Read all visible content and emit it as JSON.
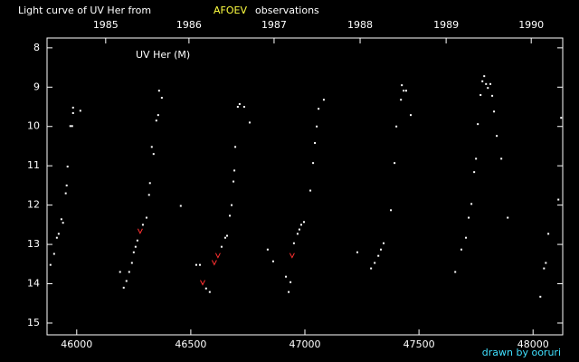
{
  "chart_data": {
    "type": "scatter",
    "title_prefix": "Light curve of UV Her from",
    "title_highlight": "AFOEV",
    "title_suffix": "observations",
    "label": "UV Her (M)",
    "credit": "drawn by ooruri",
    "xlim": [
      45870,
      48130
    ],
    "xticks": [
      46000,
      46500,
      47000,
      47500,
      48000
    ],
    "x2ticks": [
      {
        "value": 46127,
        "label": "1985"
      },
      {
        "value": 46492,
        "label": "1986"
      },
      {
        "value": 46865,
        "label": "1987"
      },
      {
        "value": 47242,
        "label": "1988"
      },
      {
        "value": 47619,
        "label": "1989"
      },
      {
        "value": 47992,
        "label": "1990"
      }
    ],
    "ylim": [
      7.75,
      15.3
    ],
    "y_inverted": true,
    "yticks": [
      8,
      9,
      10,
      11,
      12,
      13,
      14,
      15
    ],
    "background": "#000000",
    "axis_color": "#ffffff",
    "highlight_color": "#ffff40",
    "credit_color": "#40e0ff",
    "series": [
      {
        "color": "#ffffff",
        "marker": "dot",
        "x": [
          45885,
          45901,
          45913,
          45921,
          45933,
          45940,
          45952,
          45956,
          45960,
          45972,
          45980,
          45984,
          45984,
          46016,
          46190,
          46206,
          46218,
          46230,
          46242,
          46250,
          46258,
          46266,
          46290,
          46306,
          46317,
          46321,
          46329,
          46337,
          46349,
          46357,
          46361,
          46373,
          46456,
          46524,
          46540,
          46567,
          46583,
          46635,
          46651,
          46659,
          46671,
          46679,
          46687,
          46691,
          46695,
          46706,
          46714,
          46734,
          46758,
          46837,
          46861,
          46917,
          46929,
          46937,
          46952,
          46968,
          46976,
          46984,
          46996,
          47024,
          47036,
          47044,
          47052,
          47060,
          47083,
          47230,
          47290,
          47306,
          47322,
          47333,
          47345,
          47377,
          47393,
          47401,
          47421,
          47425,
          47433,
          47444,
          47464,
          47659,
          47686,
          47706,
          47718,
          47730,
          47742,
          47750,
          47758,
          47770,
          47778,
          47786,
          47794,
          47802,
          47813,
          47821,
          47829,
          47841,
          47861,
          47889,
          48032,
          48048,
          48056,
          48067,
          48111,
          48123
        ],
        "values": [
          13.52,
          13.24,
          12.83,
          12.73,
          12.36,
          12.45,
          11.7,
          11.5,
          11.02,
          9.99,
          9.99,
          9.66,
          9.52,
          9.6,
          13.7,
          14.1,
          13.93,
          13.7,
          13.47,
          13.2,
          13.06,
          12.9,
          12.5,
          12.32,
          11.74,
          11.44,
          10.52,
          10.7,
          9.85,
          9.71,
          9.09,
          9.27,
          12.02,
          13.52,
          13.52,
          14.12,
          14.21,
          13.06,
          12.83,
          12.78,
          12.27,
          12.0,
          11.4,
          11.12,
          10.52,
          9.5,
          9.43,
          9.5,
          9.9,
          13.13,
          13.43,
          13.82,
          14.21,
          13.96,
          12.97,
          12.73,
          12.62,
          12.5,
          12.43,
          11.63,
          10.93,
          10.42,
          10.0,
          9.55,
          9.32,
          13.2,
          13.61,
          13.47,
          13.29,
          13.13,
          12.97,
          12.13,
          10.93,
          10.0,
          9.32,
          8.95,
          9.09,
          9.09,
          9.71,
          13.7,
          13.13,
          12.83,
          12.32,
          11.97,
          11.16,
          10.82,
          9.94,
          9.2,
          8.85,
          8.72,
          8.92,
          9.02,
          8.92,
          9.22,
          9.62,
          10.24,
          10.82,
          12.32,
          14.33,
          13.61,
          13.47,
          12.73,
          11.86,
          9.78
        ]
      },
      {
        "color": "#ff3030",
        "marker": "v",
        "x": [
          46278,
          46552,
          46603,
          46619,
          46944
        ],
        "values": [
          12.67,
          13.98,
          13.47,
          13.29,
          13.29
        ]
      }
    ]
  }
}
